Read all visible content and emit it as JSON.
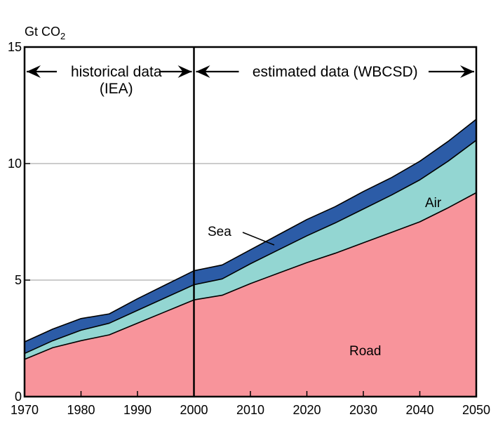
{
  "chart_data": {
    "type": "area",
    "title": "",
    "ylabel": "Gt CO2",
    "xlabel": "",
    "xlim": [
      1970,
      2050
    ],
    "ylim": [
      0,
      15
    ],
    "xticks": [
      1970,
      1980,
      1990,
      2000,
      2010,
      2020,
      2030,
      2040,
      2050
    ],
    "yticks": [
      0,
      5,
      10,
      15
    ],
    "grid_y": [
      5,
      10
    ],
    "stacked": true,
    "x": [
      1970,
      1975,
      1980,
      1985,
      1990,
      1995,
      2000,
      2005,
      2010,
      2015,
      2020,
      2025,
      2030,
      2035,
      2040,
      2045,
      2050
    ],
    "series": [
      {
        "name": "Road",
        "color": "#f8949b",
        "values": [
          1.6,
          2.1,
          2.4,
          2.65,
          3.15,
          3.65,
          4.15,
          4.35,
          4.85,
          5.3,
          5.75,
          6.15,
          6.6,
          7.05,
          7.5,
          8.1,
          8.75
        ]
      },
      {
        "name": "Air",
        "color": "#93d6d2",
        "values": [
          0.25,
          0.3,
          0.45,
          0.5,
          0.55,
          0.6,
          0.65,
          0.7,
          0.85,
          1.0,
          1.15,
          1.3,
          1.45,
          1.6,
          1.8,
          2.0,
          2.25
        ]
      },
      {
        "name": "Sea",
        "color": "#2c5ca7",
        "values": [
          0.5,
          0.5,
          0.5,
          0.4,
          0.5,
          0.55,
          0.6,
          0.6,
          0.6,
          0.65,
          0.7,
          0.7,
          0.75,
          0.75,
          0.8,
          0.85,
          0.9
        ]
      }
    ],
    "boundary": {
      "x": 2000
    },
    "annotations": {
      "historical_line1": "historical data",
      "historical_line2": "(IEA)",
      "estimated": "estimated data (WBCSD)"
    },
    "series_labels": {
      "sea": "Sea",
      "air": "Air",
      "road": "Road"
    }
  }
}
